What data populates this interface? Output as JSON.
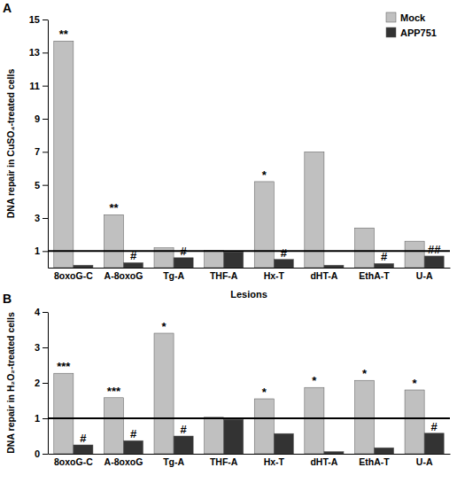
{
  "chart_data": [
    {
      "type": "bar",
      "title": "A",
      "y_label": "DNA repair in CuSO₄-treated cells",
      "x_label": "Lesions",
      "categories": [
        "8oxoG-C",
        "A-8oxoG",
        "Tg-A",
        "THF-A",
        "Hx-T",
        "dHT-A",
        "EthA-T",
        "U-A"
      ],
      "series": [
        {
          "name": "Mock",
          "color": "#c0c0c0",
          "values": [
            13.7,
            3.2,
            1.2,
            1.05,
            5.2,
            7.0,
            2.4,
            1.6
          ],
          "annotations": [
            "**",
            "**",
            null,
            null,
            "*",
            null,
            null,
            null
          ]
        },
        {
          "name": "APP751",
          "color": "#333333",
          "values": [
            0.15,
            0.3,
            0.6,
            0.95,
            0.5,
            0.15,
            0.25,
            0.7
          ],
          "annotations": [
            null,
            "#",
            "#",
            null,
            "#",
            null,
            "#",
            "##"
          ]
        }
      ],
      "reference_line": 1,
      "ylim": [
        0,
        15
      ],
      "yticks": [
        1,
        3,
        5,
        7,
        9,
        11,
        13,
        15
      ],
      "legend": "top-right"
    },
    {
      "type": "bar",
      "title": "B",
      "y_label": "DNA repair in H₂O₂-treated cells",
      "categories": [
        "8oxoG-C",
        "A-8oxoG",
        "Tg-A",
        "THF-A",
        "Hx-T",
        "dHT-A",
        "EthA-T",
        "U-A"
      ],
      "series": [
        {
          "color": "#c0c0c0",
          "values": [
            2.27,
            1.58,
            3.4,
            1.03,
            1.55,
            1.87,
            2.07,
            1.8
          ],
          "annotations": [
            "***",
            "***",
            "*",
            null,
            "*",
            "*",
            "*",
            "*"
          ]
        },
        {
          "color": "#333333",
          "values": [
            0.25,
            0.37,
            0.5,
            0.97,
            0.57,
            0.06,
            0.17,
            0.58
          ],
          "annotations": [
            "#",
            "#",
            "#",
            null,
            null,
            null,
            null,
            "#"
          ]
        }
      ],
      "reference_line": 1,
      "ylim": [
        0,
        4
      ],
      "yticks": [
        0,
        1,
        2,
        3,
        4
      ]
    }
  ]
}
